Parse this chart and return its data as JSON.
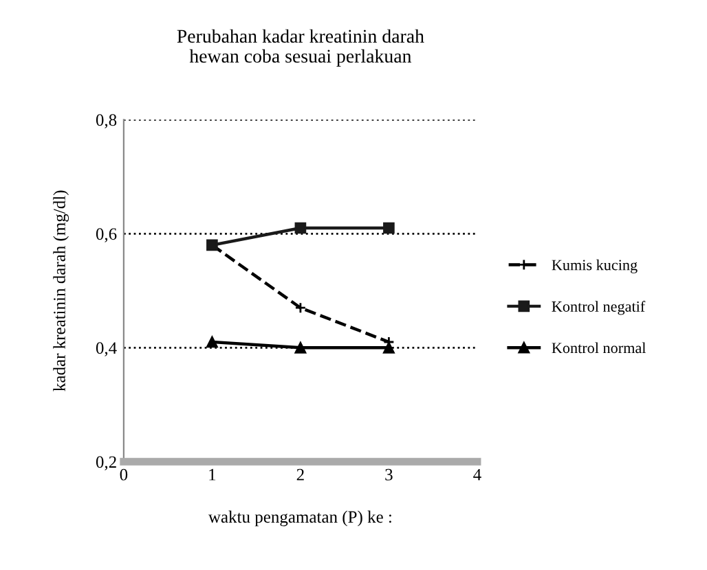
{
  "chart_data": {
    "type": "line",
    "title": "Perubahan kadar kreatinin darah\nhewan coba sesuai perlakuan",
    "xlabel": "waktu pengamatan (P) ke :",
    "ylabel": "kadar kreatinin darah (mg/dl)",
    "x": [
      1,
      2,
      3
    ],
    "series": [
      {
        "name": "Kumis kucing",
        "color": "#000000",
        "values": [
          0.58,
          0.47,
          0.41
        ],
        "line_style": "dashed",
        "marker": "cross"
      },
      {
        "name": "Kontrol negatif",
        "color": "#1a1a1a",
        "values": [
          0.58,
          0.61,
          0.61
        ],
        "line_style": "solid",
        "marker": "square"
      },
      {
        "name": "Kontrol normal",
        "color": "#000000",
        "values": [
          0.41,
          0.4,
          0.4
        ],
        "line_style": "solid",
        "marker": "triangle"
      }
    ],
    "xlim": [
      0,
      4
    ],
    "xticks": [
      0,
      1,
      2,
      3,
      4
    ],
    "ylim": [
      0.2,
      0.8
    ],
    "yticks": [
      {
        "value": 0.2,
        "label": "0,2"
      },
      {
        "value": 0.4,
        "label": "0,4"
      },
      {
        "value": 0.6,
        "label": "0,6"
      },
      {
        "value": 0.8,
        "label": "0,8"
      }
    ],
    "grid": "y",
    "legend": "right"
  }
}
